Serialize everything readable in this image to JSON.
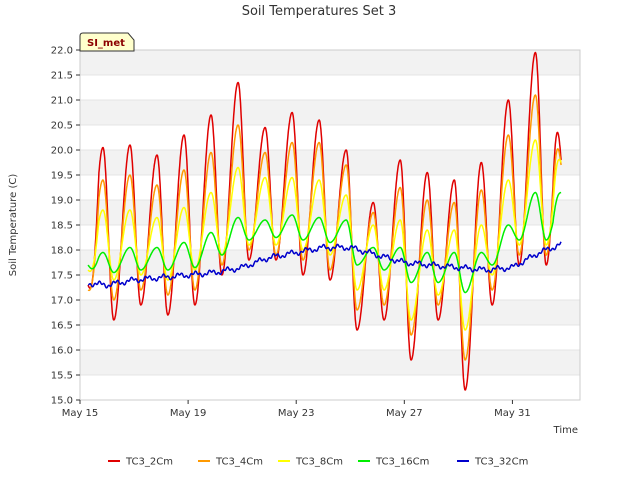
{
  "chart_data": {
    "type": "line",
    "title": "Soil Temperatures Set 3",
    "xlabel": "Time",
    "ylabel": "Soil Temperature (C)",
    "ylim": [
      15.0,
      22.0
    ],
    "xlim": [
      0,
      18.5
    ],
    "y_ticks": [
      "15.0",
      "15.5",
      "16.0",
      "16.5",
      "17.0",
      "17.5",
      "18.0",
      "18.5",
      "19.0",
      "19.5",
      "20.0",
      "20.5",
      "21.0",
      "21.5",
      "22.0"
    ],
    "x_ticks": [
      {
        "label": "May 15",
        "x": 0
      },
      {
        "label": "May 19",
        "x": 4
      },
      {
        "label": "May 23",
        "x": 8
      },
      {
        "label": "May 27",
        "x": 12
      },
      {
        "label": "May 31",
        "x": 16
      }
    ],
    "badge": "SI_met",
    "grid": "horizontal bands",
    "legend_position": "bottom",
    "series": [
      {
        "name": "TC3_2Cm",
        "color": "#e00000",
        "daily_min": [
          16.6,
          16.6,
          16.9,
          16.7,
          16.9,
          17.5,
          17.8,
          17.8,
          17.5,
          17.4,
          16.4,
          16.6,
          15.8,
          16.6,
          15.2,
          16.9,
          17.7
        ],
        "daily_max": [
          20.05,
          20.1,
          19.9,
          20.3,
          20.7,
          21.35,
          20.45,
          20.75,
          20.6,
          20.0,
          18.95,
          19.8,
          19.55,
          19.4,
          19.75,
          21.0,
          21.95
        ],
        "start": 17.3,
        "end": 19.8
      },
      {
        "name": "TC3_4Cm",
        "color": "#ff9900",
        "daily_min": [
          17.0,
          17.0,
          17.2,
          17.1,
          17.2,
          17.7,
          18.0,
          17.9,
          17.8,
          17.6,
          16.8,
          16.9,
          16.3,
          16.9,
          15.8,
          17.2,
          17.9
        ],
        "daily_max": [
          19.4,
          19.5,
          19.3,
          19.6,
          19.95,
          20.5,
          19.95,
          20.15,
          20.15,
          19.7,
          18.75,
          19.25,
          19.0,
          18.95,
          19.2,
          20.3,
          21.1
        ],
        "start": 17.2,
        "end": 19.7
      },
      {
        "name": "TC3_8Cm",
        "color": "#ffff00",
        "daily_min": [
          17.3,
          17.4,
          17.5,
          17.4,
          17.6,
          17.9,
          18.1,
          18.1,
          18.0,
          17.9,
          17.2,
          17.2,
          16.6,
          17.1,
          16.4,
          17.5,
          18.1
        ],
        "daily_max": [
          18.8,
          18.8,
          18.65,
          18.85,
          19.15,
          19.65,
          19.45,
          19.45,
          19.4,
          19.1,
          18.5,
          18.6,
          18.4,
          18.4,
          18.5,
          19.4,
          20.2
        ],
        "start": 17.6,
        "end": 19.75
      },
      {
        "name": "TC3_16Cm",
        "color": "#00ee00",
        "daily_min": [
          17.35,
          17.55,
          17.6,
          17.6,
          17.65,
          17.9,
          18.2,
          18.25,
          18.2,
          18.15,
          17.7,
          17.6,
          17.35,
          17.35,
          17.15,
          17.7,
          18.2
        ],
        "daily_max": [
          17.95,
          18.05,
          18.05,
          18.15,
          18.35,
          18.65,
          18.6,
          18.7,
          18.65,
          18.6,
          18.05,
          18.05,
          17.95,
          17.95,
          17.95,
          18.5,
          19.15
        ],
        "start": 17.7,
        "end": 19.15
      },
      {
        "name": "TC3_32Cm",
        "color": "#0000cc",
        "trend": [
          17.35,
          17.3,
          17.4,
          17.45,
          17.5,
          17.55,
          17.65,
          17.85,
          17.95,
          18.05,
          18.05,
          17.9,
          17.75,
          17.7,
          17.65,
          17.6,
          17.65,
          17.95,
          18.15
        ]
      }
    ]
  }
}
